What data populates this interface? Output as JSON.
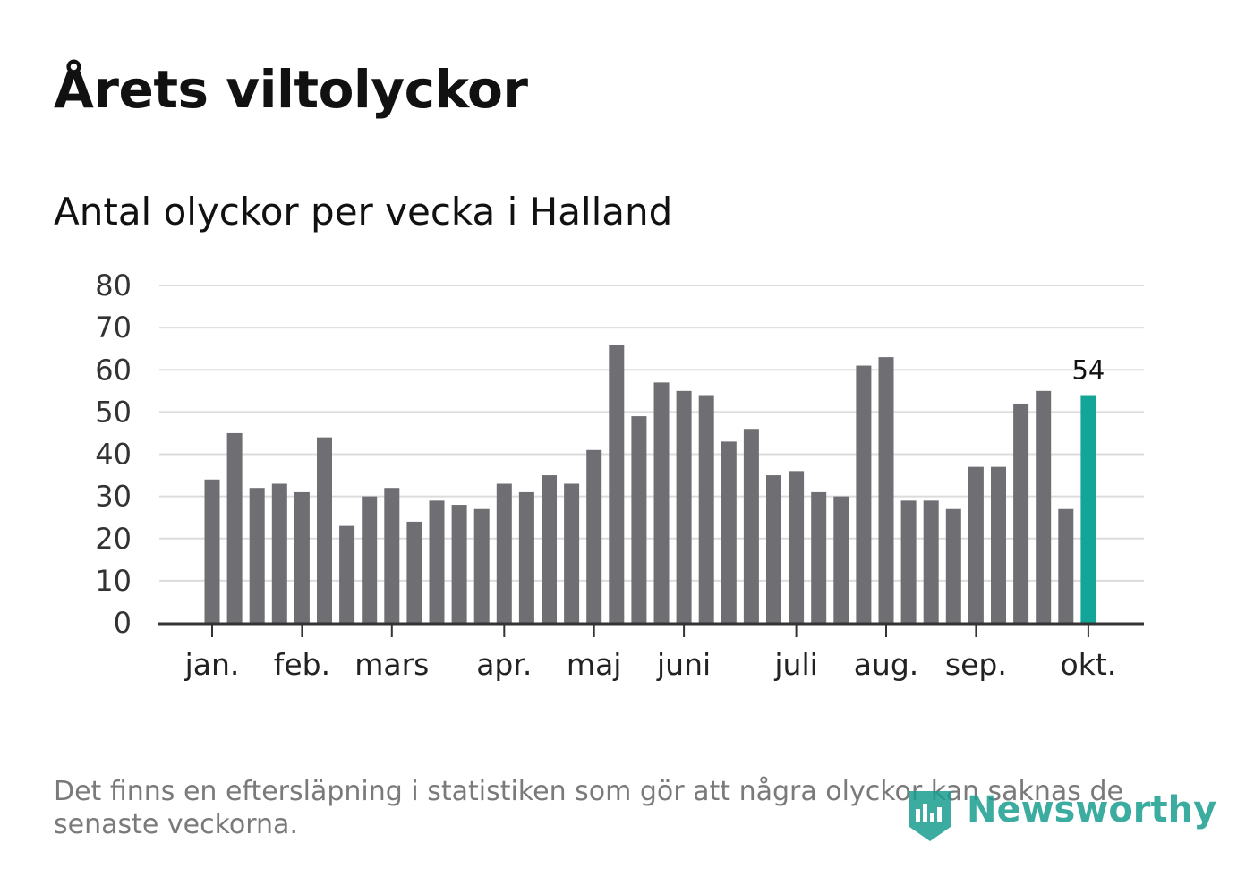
{
  "title": "Årets viltolyckor",
  "subtitle": "Antal olyckor per vecka i Halland",
  "footnote": "Det finns en eftersläpning i statistiken som gör att några olyckor kan saknas de senaste veckorna.",
  "logo": {
    "text": "Newsworthy",
    "icon": "newsworthy-logo-icon",
    "color": "#1a9e8f"
  },
  "colors": {
    "bar": "#6f6e73",
    "highlight": "#13a598",
    "grid": "#dcdcdc",
    "axis": "#333333"
  },
  "chart_data": {
    "type": "bar",
    "title": "Antal olyckor per vecka i Halland",
    "xlabel": "",
    "ylabel": "",
    "ylim": [
      0,
      80
    ],
    "yticks": [
      0,
      10,
      20,
      30,
      40,
      50,
      60,
      70,
      80
    ],
    "grid": true,
    "values": [
      34,
      45,
      32,
      33,
      31,
      44,
      23,
      30,
      32,
      24,
      29,
      28,
      27,
      33,
      31,
      35,
      33,
      41,
      66,
      49,
      57,
      55,
      54,
      43,
      46,
      35,
      36,
      31,
      30,
      61,
      63,
      29,
      29,
      27,
      37,
      37,
      52,
      55,
      27,
      54
    ],
    "highlight_index": 39,
    "highlight_label": "54",
    "month_ticks": [
      {
        "label": "jan.",
        "bar_index": 0
      },
      {
        "label": "feb.",
        "bar_index": 4
      },
      {
        "label": "mars",
        "bar_index": 8
      },
      {
        "label": "apr.",
        "bar_index": 13
      },
      {
        "label": "maj",
        "bar_index": 17
      },
      {
        "label": "juni",
        "bar_index": 21
      },
      {
        "label": "juli",
        "bar_index": 26
      },
      {
        "label": "aug.",
        "bar_index": 30
      },
      {
        "label": "sep.",
        "bar_index": 34
      },
      {
        "label": "okt.",
        "bar_index": 39
      }
    ]
  }
}
